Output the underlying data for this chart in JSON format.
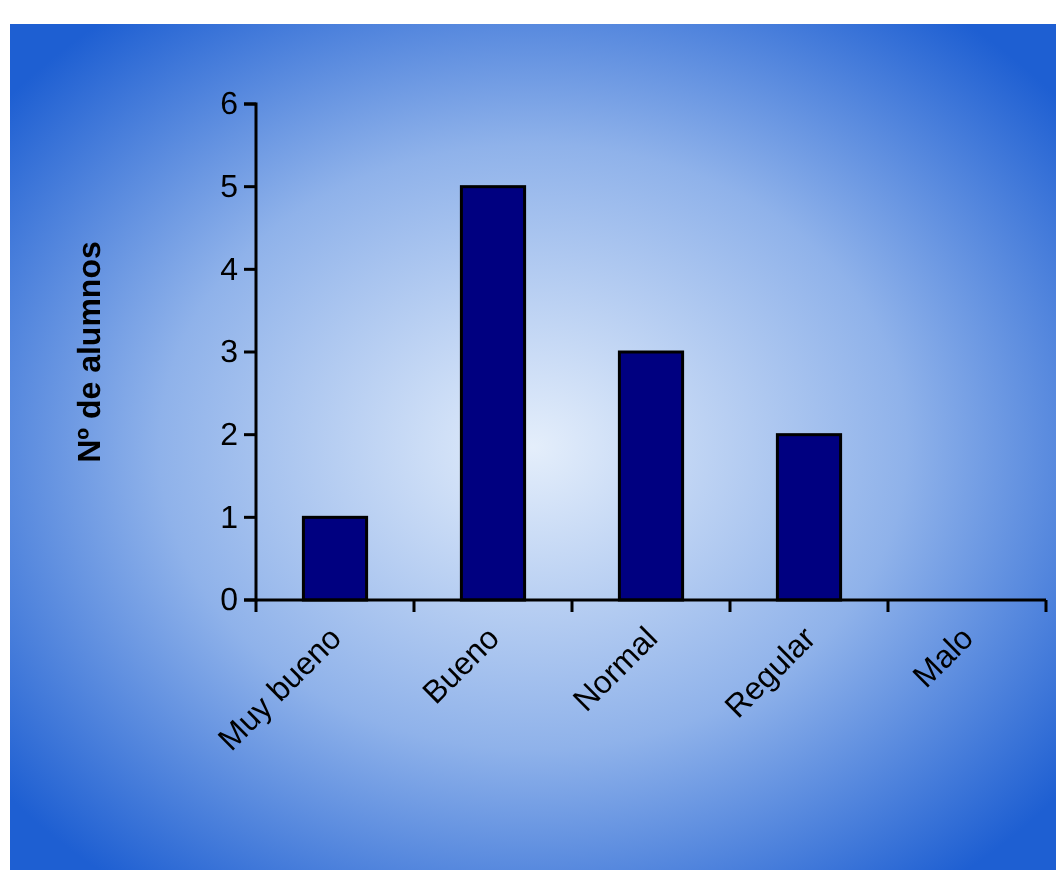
{
  "chart_data": {
    "type": "bar",
    "ylabel": "Nº de alumnos",
    "categories": [
      "Muy bueno",
      "Bueno",
      "Normal",
      "Regular",
      "Malo"
    ],
    "values": [
      1,
      5,
      3,
      2,
      0
    ],
    "color": "#000080",
    "ylim": [
      0,
      6
    ],
    "yticks": [
      0,
      1,
      2,
      3,
      4,
      5,
      6
    ],
    "grid": false
  }
}
